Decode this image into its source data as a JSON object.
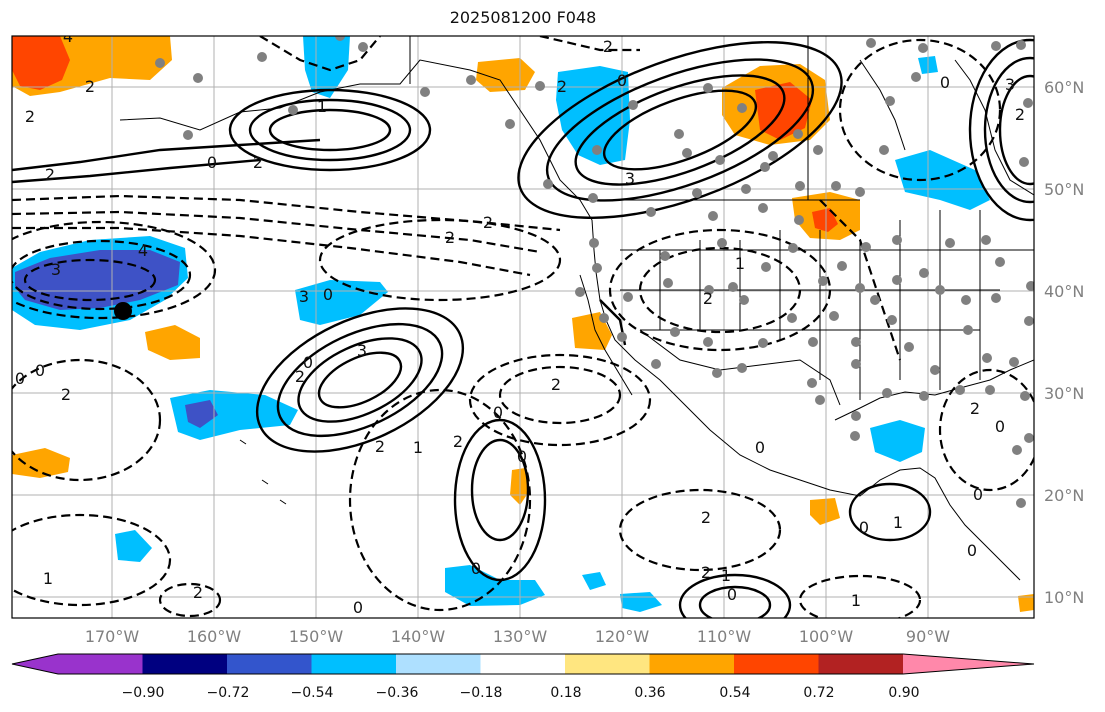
{
  "title": "2025081200 F048",
  "map": {
    "lat_labels": [
      "60°N",
      "50°N",
      "40°N",
      "30°N",
      "20°N",
      "10°N"
    ],
    "lon_labels": [
      "170°W",
      "160°W",
      "150°W",
      "140°W",
      "130°W",
      "120°W",
      "110°W",
      "100°W",
      "90°W"
    ],
    "contour_labels": [
      "4",
      "2",
      "2",
      "2",
      "0",
      "2",
      "1",
      "0",
      "3",
      "2",
      "0",
      "3",
      "2",
      "4",
      "3",
      "2",
      "2",
      "3",
      "2",
      "2",
      "0",
      "1",
      "2",
      "0",
      "2",
      "0",
      "0",
      "2",
      "1",
      "2",
      "0",
      "1",
      "0",
      "2",
      "1",
      "0",
      "1",
      "0",
      "0",
      "2",
      "3",
      "0",
      "2",
      "0",
      "0",
      "2",
      "0",
      "1",
      "2",
      "0"
    ]
  },
  "colorbar": {
    "labels": [
      "−0.90",
      "−0.72",
      "−0.54",
      "−0.36",
      "−0.18",
      "0.18",
      "0.36",
      "0.54",
      "0.72",
      "0.90"
    ],
    "colors": [
      "#9933cc",
      "#000080",
      "#3355cc",
      "#00bfff",
      "#aee0ff",
      "#ffffff",
      "#ffe680",
      "#ffa500",
      "#ff4500",
      "#b22222",
      "#ff88aa"
    ]
  },
  "fill_colors": {
    "deep_blue": "#3e52c6",
    "blue": "#00bfff",
    "orange": "#ffa500",
    "red": "#ff4500",
    "yellow": "#ffe680"
  },
  "station_color": "#808080"
}
